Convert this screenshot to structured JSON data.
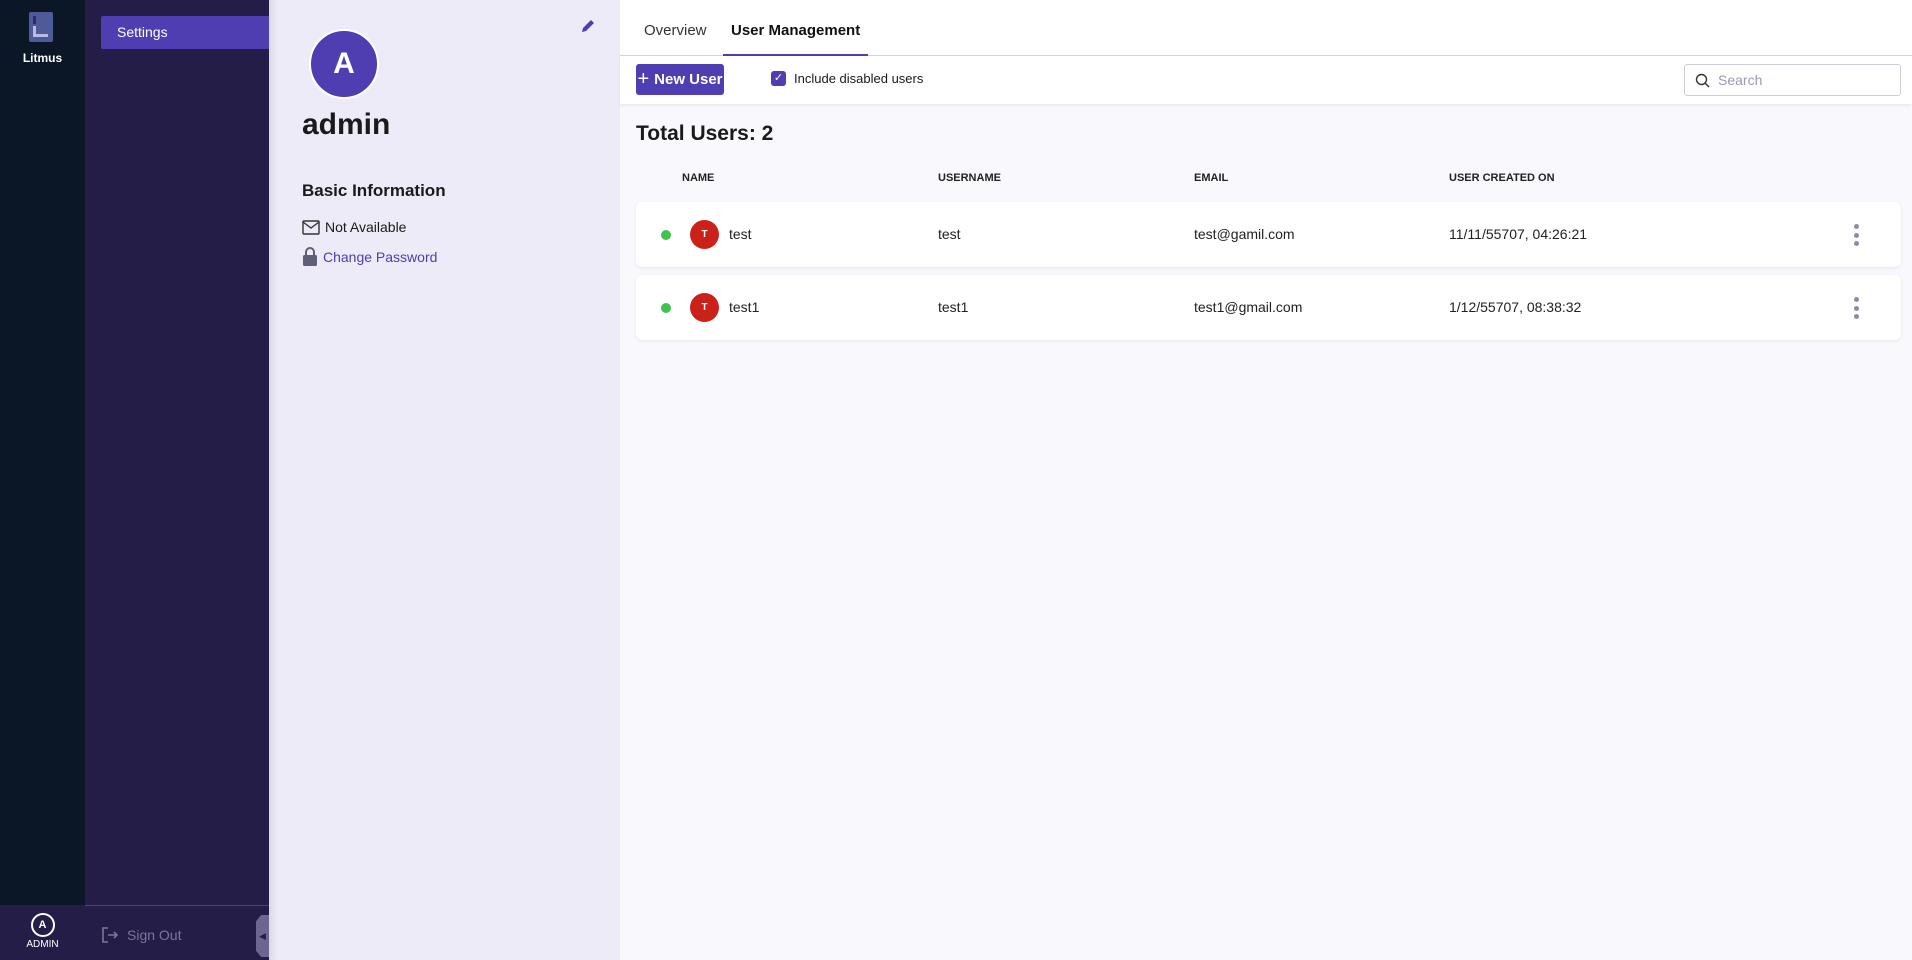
{
  "rail": {
    "brand": "Litmus",
    "user_initial": "A",
    "user_label": "ADMIN"
  },
  "nav": {
    "items": [
      {
        "label": "Settings",
        "active": true
      }
    ],
    "sign_out": "Sign Out"
  },
  "profile": {
    "initial": "A",
    "name": "admin",
    "section_title": "Basic Information",
    "email": "Not Available",
    "change_password": "Change Password"
  },
  "tabs": [
    {
      "label": "Overview",
      "active": false
    },
    {
      "label": "User Management",
      "active": true
    }
  ],
  "toolbar": {
    "new_user": "New User",
    "include_disabled": "Include disabled users",
    "include_disabled_checked": true,
    "search_placeholder": "Search",
    "search_value": ""
  },
  "total_users": "Total Users: 2",
  "table": {
    "headers": [
      "NAME",
      "USERNAME",
      "EMAIL",
      "USER CREATED ON"
    ],
    "rows": [
      {
        "status": "active",
        "initial": "T",
        "name": "test",
        "username": "test",
        "email": "test@gamil.com",
        "created": "11/11/55707, 04:26:21"
      },
      {
        "status": "active",
        "initial": "T",
        "name": "test1",
        "username": "test1",
        "email": "test1@gmail.com",
        "created": "1/12/55707, 08:38:32"
      }
    ]
  },
  "colors": {
    "accent": "#4f3db2",
    "rail": "#0b1726",
    "nav": "#231d47",
    "active_status": "#3dc44a",
    "user_avatar": "#cc2119"
  }
}
